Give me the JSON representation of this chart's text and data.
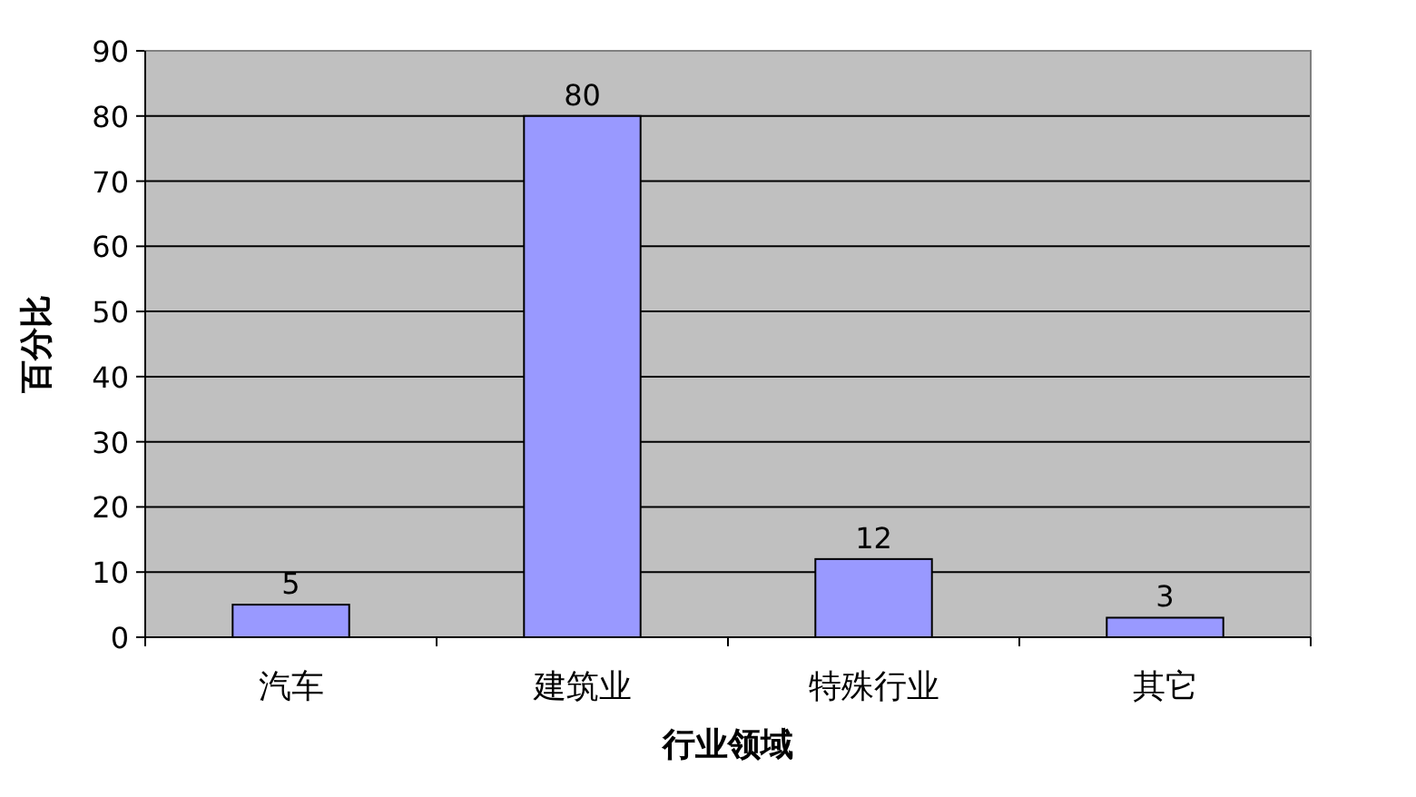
{
  "chart_data": {
    "type": "bar",
    "xlabel": "行业领域",
    "ylabel": "百分比",
    "categories": [
      "汽车",
      "建筑业",
      "特殊行业",
      "其它"
    ],
    "values": [
      5,
      80,
      12,
      3
    ],
    "color": "#9999ff",
    "ylim": [
      0,
      90
    ],
    "yticks": [
      0,
      10,
      20,
      30,
      40,
      50,
      60,
      70,
      80,
      90
    ],
    "grid": "y",
    "data_labels": true
  }
}
